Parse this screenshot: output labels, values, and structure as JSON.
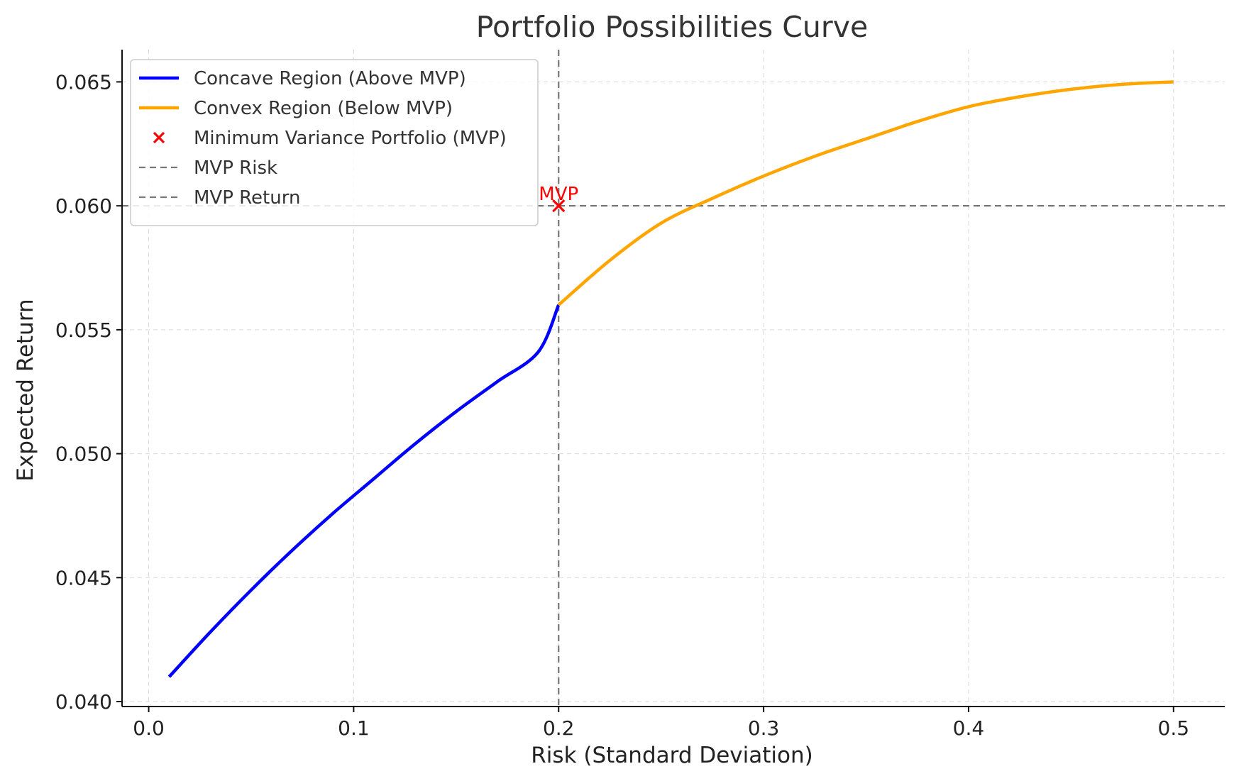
{
  "chart_data": {
    "type": "line",
    "title": "Portfolio Possibilities Curve",
    "xlabel": "Risk (Standard Deviation)",
    "ylabel": "Expected Return",
    "xlim": [
      -0.013,
      0.525
    ],
    "ylim": [
      0.0398,
      0.0663
    ],
    "xticks": [
      0.0,
      0.1,
      0.2,
      0.3,
      0.4,
      0.5
    ],
    "xtick_labels": [
      "0.0",
      "0.1",
      "0.2",
      "0.3",
      "0.4",
      "0.5"
    ],
    "yticks": [
      0.04,
      0.045,
      0.05,
      0.055,
      0.06,
      0.065
    ],
    "ytick_labels": [
      "0.040",
      "0.045",
      "0.050",
      "0.055",
      "0.060",
      "0.065"
    ],
    "grid": true,
    "legend_position": "upper-left",
    "series": [
      {
        "name": "Concave Region (Above MVP)",
        "kind": "line",
        "color": "#0000ff",
        "x": [
          0.01,
          0.03,
          0.05,
          0.07,
          0.09,
          0.11,
          0.13,
          0.15,
          0.17,
          0.19,
          0.2
        ],
        "y": [
          0.041,
          0.0428,
          0.0445,
          0.0461,
          0.0476,
          0.049,
          0.0504,
          0.0517,
          0.0529,
          0.0541,
          0.056
        ]
      },
      {
        "name": "Convex Region (Below MVP)",
        "kind": "line",
        "color": "#ffa500",
        "x": [
          0.2,
          0.225,
          0.25,
          0.275,
          0.3,
          0.325,
          0.35,
          0.375,
          0.4,
          0.425,
          0.45,
          0.475,
          0.5
        ],
        "y": [
          0.056,
          0.0578,
          0.0593,
          0.0603,
          0.0612,
          0.062,
          0.0627,
          0.0634,
          0.064,
          0.0644,
          0.0647,
          0.0649,
          0.065
        ]
      },
      {
        "name": "Minimum Variance Portfolio (MVP)",
        "kind": "marker",
        "marker": "x",
        "color": "#ff0000",
        "x": [
          0.2
        ],
        "y": [
          0.06
        ]
      },
      {
        "name": "MVP Risk",
        "kind": "vline",
        "color": "#777777",
        "x": 0.2
      },
      {
        "name": "MVP Return",
        "kind": "hline",
        "color": "#777777",
        "y": 0.06
      }
    ],
    "annotations": [
      {
        "text": "MVP",
        "x": 0.2,
        "y": 0.06,
        "color": "#ff0000"
      }
    ]
  }
}
